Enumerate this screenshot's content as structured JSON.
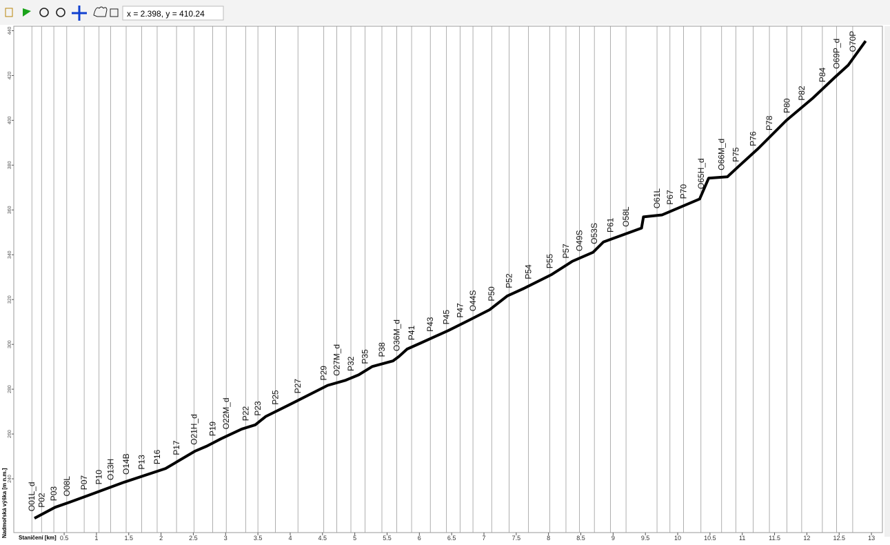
{
  "toolbar": {
    "coordinates": "x = 2.398, y = 410.24"
  },
  "chart_data": {
    "type": "line",
    "x_label": "Staničení [km]",
    "y_label": "Nadmořská výška [m n.m.]",
    "color": "#000000",
    "x": [
      0.04,
      0.36,
      0.58,
      1.43,
      2.07,
      2.53,
      2.71,
      2.93,
      3.25,
      3.46,
      3.62,
      3.99,
      4.58,
      4.85,
      5.06,
      5.27,
      5.59,
      5.68,
      5.81,
      6.02,
      6.45,
      6.77,
      7.09,
      7.36,
      7.62,
      8.05,
      8.37,
      8.69,
      8.85,
      9.44,
      9.47,
      9.76,
      10.34,
      10.48,
      10.77,
      10.93,
      11.25,
      11.68,
      12.1,
      12.43,
      12.64,
      12.91
    ],
    "values": [
      222.4,
      227.3,
      229.5,
      238.5,
      244.6,
      252.4,
      254.6,
      257.9,
      262.2,
      264.1,
      267.8,
      273.1,
      281.7,
      283.9,
      286.4,
      290.1,
      292.6,
      294.5,
      297.9,
      300.6,
      306.2,
      310.8,
      315.5,
      321.6,
      325.0,
      331.2,
      337.1,
      341.1,
      345.7,
      351.9,
      356.9,
      357.8,
      364.9,
      374.2,
      374.8,
      379.1,
      387.5,
      399.9,
      410.1,
      419.1,
      424.6,
      435.4
    ],
    "station_labels": [
      "O01L_d",
      "P02",
      "P03",
      "O08L",
      "P07",
      "P10",
      "O13H",
      "O14B",
      "P13",
      "P16",
      "P17",
      "O21H_d",
      "P19",
      "O22M_d",
      "P22",
      "P23",
      "P25",
      "P27",
      "P29",
      "O27M_d",
      "P32",
      "P35",
      "P38",
      "O36M_d",
      "P41",
      "P43",
      "P45",
      "P47",
      "O44S",
      "P50",
      "P52",
      "P54",
      "P55",
      "P57",
      "O49S",
      "O53S",
      "P61",
      "O58L",
      "O61L",
      "P67",
      "P70",
      "O65H_d",
      "O66M_d",
      "P75",
      "P76",
      "P78",
      "P80",
      "P82",
      "P84",
      "O69P_d",
      "O70P"
    ],
    "station_x": [
      0.0,
      0.15,
      0.34,
      0.54,
      0.81,
      1.04,
      1.22,
      1.46,
      1.7,
      1.94,
      2.24,
      2.51,
      2.8,
      3.01,
      3.31,
      3.5,
      3.77,
      4.12,
      4.52,
      4.72,
      4.94,
      5.16,
      5.42,
      5.65,
      5.88,
      6.17,
      6.42,
      6.63,
      6.83,
      7.12,
      7.39,
      7.69,
      8.02,
      8.27,
      8.48,
      8.71,
      8.96,
      9.2,
      9.68,
      9.88,
      10.09,
      10.36,
      10.68,
      10.9,
      11.17,
      11.42,
      11.69,
      11.92,
      12.24,
      12.46,
      12.71
    ],
    "xlim": [
      -0.28,
      13.17
    ],
    "ylim": [
      216,
      442
    ],
    "xticks": [
      0.5,
      1,
      1.5,
      2,
      2.5,
      3,
      3.5,
      4,
      4.5,
      5,
      5.5,
      6,
      6.5,
      7,
      7.5,
      8,
      8.5,
      9,
      9.5,
      10,
      10.5,
      11,
      11.5,
      12,
      12.5,
      13
    ],
    "yticks": [
      240,
      260,
      280,
      300,
      320,
      340,
      360,
      380,
      400,
      420,
      440
    ]
  }
}
